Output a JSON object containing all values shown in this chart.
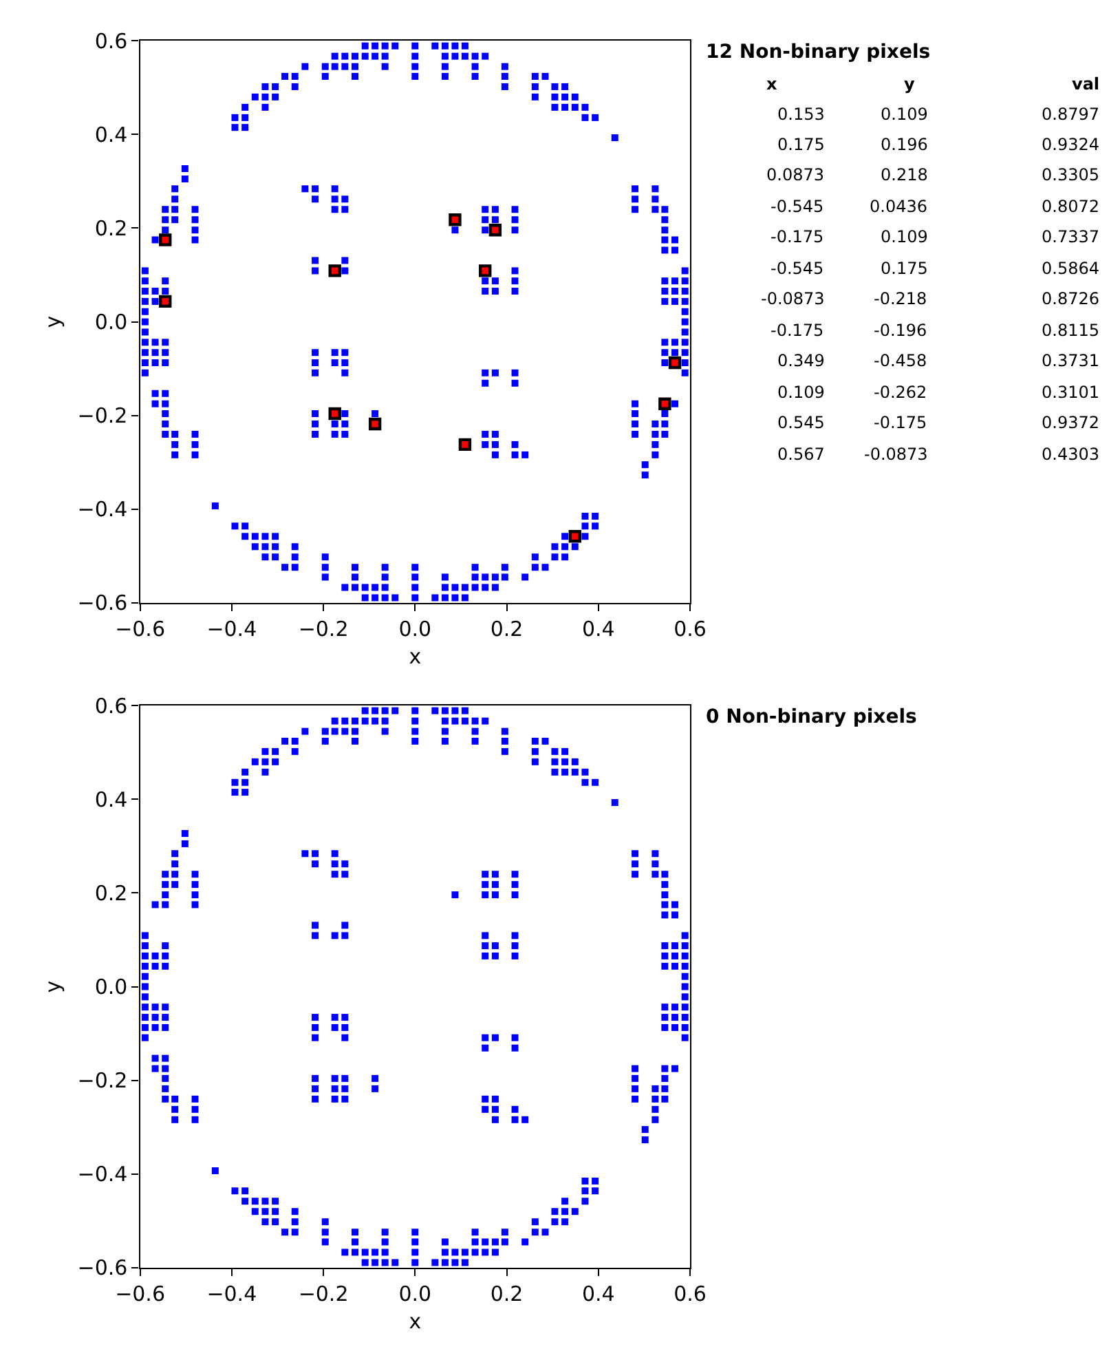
{
  "chart_data": [
    {
      "type": "scatter",
      "title": "12 Non-binary pixels",
      "xlabel": "x",
      "ylabel": "y",
      "marker": "square",
      "annotations": [
        "x",
        "y",
        "val",
        "0.153",
        "0.109",
        "0.8797",
        "0.175",
        "0.196",
        "0.9324",
        "0.0873",
        "0.218",
        "0.3305",
        "-0.545",
        "0.0436",
        "0.8072",
        "-0.175",
        "0.109",
        "0.7337",
        "-0.545",
        "0.175",
        "0.5864",
        "-0.0873",
        "-0.218",
        "0.8726",
        "-0.175",
        "-0.196",
        "0.8115",
        "0.349",
        "-0.458",
        "0.3731",
        "0.109",
        "-0.262",
        "0.3101",
        "0.545",
        "-0.175",
        "0.9372",
        "0.567",
        "-0.0873",
        "0.4303"
      ],
      "xlim": [
        -0.6,
        0.6
      ],
      "ylim": [
        -0.6,
        0.6
      ],
      "xticks": [
        {
          "value": -0.6,
          "label": "−0.6"
        },
        {
          "value": -0.4,
          "label": "−0.4"
        },
        {
          "value": -0.2,
          "label": "−0.2"
        },
        {
          "value": 0,
          "label": "0.0"
        },
        0.2,
        0.4,
        0.6
      ],
      "yticks": [
        {
          "value": -0.6,
          "label": "−0.6"
        },
        {
          "value": -0.4,
          "label": "−0.4"
        },
        {
          "value": -0.2,
          "label": "−0.2"
        },
        {
          "value": 0,
          "label": "0.0"
        },
        0.2,
        0.4,
        0.6
      ],
      "series": [
        {
          "color": "#0000ff",
          "x": [
            -0.109,
            -0.0873,
            -0.0655,
            -0.0436,
            0,
            0.0436,
            0.0655,
            0.0873,
            0.109,
            -0.175,
            -0.153,
            -0.131,
            -0.109,
            -0.0873,
            -0.0655,
            0,
            0.0655,
            0.0873,
            0.109,
            0.131,
            0.153,
            -0.24,
            -0.196,
            -0.175,
            -0.153,
            -0.131,
            -0.0655,
            0,
            0.0655,
            0.131,
            0.196,
            -0.284,
            -0.262,
            -0.196,
            -0.131,
            0,
            0.0655,
            0.131,
            0.196,
            0.262,
            0.284,
            -0.327,
            -0.305,
            -0.262,
            0.196,
            0.262,
            0.305,
            0.327,
            -0.349,
            -0.327,
            -0.305,
            0.262,
            0.305,
            0.327,
            0.349,
            -0.371,
            -0.327,
            0.305,
            0.327,
            0.349,
            0.371,
            -0.393,
            -0.371,
            0.371,
            0.393,
            -0.393,
            -0.371,
            0.436,
            -0.502,
            -0.502,
            -0.524,
            -0.24,
            -0.218,
            -0.175,
            0.48,
            0.524,
            -0.524,
            -0.218,
            -0.175,
            -0.153,
            0.48,
            0.524,
            -0.545,
            -0.524,
            -0.48,
            -0.175,
            -0.153,
            0.153,
            0.175,
            0.218,
            0.48,
            0.524,
            0.545,
            -0.545,
            -0.524,
            -0.48,
            0.153,
            0.175,
            0.218,
            0.545,
            -0.545,
            -0.48,
            0.0873,
            0.153,
            0.218,
            0.545,
            -0.567,
            -0.48,
            0.545,
            0.567,
            0.545,
            0.567,
            -0.218,
            -0.153,
            -0.589,
            -0.218,
            -0.153,
            0.218,
            0.589,
            -0.589,
            -0.545,
            0.153,
            0.175,
            0.218,
            0.545,
            0.567,
            0.589,
            -0.589,
            -0.567,
            -0.545,
            0.153,
            0.175,
            0.218,
            0.545,
            0.567,
            0.589,
            -0.589,
            -0.567,
            0.545,
            0.567,
            0.589,
            -0.589,
            0.589,
            -0.589,
            0.589,
            -0.589,
            0.589,
            -0.589,
            -0.567,
            -0.545,
            0.545,
            0.567,
            0.589,
            -0.589,
            -0.567,
            -0.545,
            -0.218,
            -0.175,
            -0.153,
            0.545,
            0.567,
            0.589,
            -0.589,
            -0.567,
            -0.545,
            -0.218,
            -0.175,
            -0.153,
            0.545,
            0.589,
            -0.589,
            -0.218,
            -0.153,
            0.153,
            0.175,
            0.218,
            0.589,
            0.153,
            0.218,
            -0.567,
            -0.545,
            -0.567,
            -0.545,
            0.48,
            0.567,
            -0.545,
            -0.218,
            -0.153,
            -0.0873,
            0.48,
            0.545,
            -0.545,
            -0.218,
            -0.175,
            -0.153,
            0.48,
            0.524,
            0.545,
            -0.545,
            -0.524,
            -0.48,
            -0.218,
            -0.175,
            -0.153,
            0.153,
            0.175,
            0.48,
            0.524,
            0.545,
            -0.524,
            -0.48,
            0.153,
            0.175,
            0.218,
            0.524,
            -0.524,
            -0.48,
            0.175,
            0.218,
            0.24,
            0.524,
            0.502,
            0.502,
            -0.436,
            0.371,
            0.393,
            -0.393,
            -0.371,
            0.371,
            0.393,
            -0.371,
            -0.349,
            -0.327,
            -0.305,
            0.327,
            0.371,
            -0.349,
            -0.327,
            -0.305,
            -0.262,
            0.305,
            0.327,
            0.349,
            -0.327,
            -0.305,
            -0.262,
            -0.196,
            0.262,
            0.305,
            0.327,
            -0.284,
            -0.262,
            -0.196,
            -0.131,
            -0.0655,
            0,
            0.131,
            0.196,
            0.262,
            0.284,
            -0.196,
            -0.131,
            -0.0655,
            0,
            0.0655,
            0.131,
            0.153,
            0.175,
            0.196,
            0.24,
            -0.153,
            -0.131,
            -0.109,
            -0.0873,
            -0.0655,
            0,
            0.0655,
            0.0873,
            0.109,
            0.131,
            0.153,
            0.175,
            -0.109,
            -0.0873,
            -0.0655,
            -0.0436,
            0,
            0.0436,
            0.0655,
            0.0873,
            0.109
          ],
          "values": [
            0.589,
            0.589,
            0.589,
            0.589,
            0.589,
            0.589,
            0.589,
            0.589,
            0.589,
            0.567,
            0.567,
            0.567,
            0.567,
            0.567,
            0.567,
            0.567,
            0.567,
            0.567,
            0.567,
            0.567,
            0.567,
            0.545,
            0.545,
            0.545,
            0.545,
            0.545,
            0.545,
            0.545,
            0.545,
            0.545,
            0.545,
            0.524,
            0.524,
            0.524,
            0.524,
            0.524,
            0.524,
            0.524,
            0.524,
            0.524,
            0.524,
            0.502,
            0.502,
            0.502,
            0.502,
            0.502,
            0.502,
            0.502,
            0.48,
            0.48,
            0.48,
            0.48,
            0.48,
            0.48,
            0.48,
            0.458,
            0.458,
            0.458,
            0.458,
            0.458,
            0.458,
            0.436,
            0.436,
            0.436,
            0.436,
            0.415,
            0.415,
            0.393,
            0.327,
            0.305,
            0.284,
            0.284,
            0.284,
            0.284,
            0.284,
            0.284,
            0.262,
            0.262,
            0.262,
            0.262,
            0.262,
            0.262,
            0.24,
            0.24,
            0.24,
            0.24,
            0.24,
            0.24,
            0.24,
            0.24,
            0.24,
            0.24,
            0.24,
            0.218,
            0.218,
            0.218,
            0.218,
            0.218,
            0.218,
            0.218,
            0.196,
            0.196,
            0.196,
            0.196,
            0.196,
            0.196,
            0.175,
            0.175,
            0.175,
            0.175,
            0.153,
            0.153,
            0.131,
            0.131,
            0.109,
            0.109,
            0.109,
            0.109,
            0.109,
            0.0873,
            0.0873,
            0.0873,
            0.0873,
            0.0873,
            0.0873,
            0.0873,
            0.0873,
            0.0655,
            0.0655,
            0.0655,
            0.0655,
            0.0655,
            0.0655,
            0.0655,
            0.0655,
            0.0655,
            0.0436,
            0.0436,
            0.0436,
            0.0436,
            0.0436,
            0.0218,
            0.0218,
            0,
            0,
            -0.0218,
            -0.0218,
            -0.0436,
            -0.0436,
            -0.0436,
            -0.0436,
            -0.0436,
            -0.0436,
            -0.0655,
            -0.0655,
            -0.0655,
            -0.0655,
            -0.0655,
            -0.0655,
            -0.0655,
            -0.0655,
            -0.0655,
            -0.0873,
            -0.0873,
            -0.0873,
            -0.0873,
            -0.0873,
            -0.0873,
            -0.0873,
            -0.0873,
            -0.109,
            -0.109,
            -0.109,
            -0.109,
            -0.109,
            -0.109,
            -0.109,
            -0.131,
            -0.131,
            -0.153,
            -0.153,
            -0.175,
            -0.175,
            -0.175,
            -0.175,
            -0.196,
            -0.196,
            -0.196,
            -0.196,
            -0.196,
            -0.196,
            -0.218,
            -0.218,
            -0.218,
            -0.218,
            -0.218,
            -0.218,
            -0.218,
            -0.24,
            -0.24,
            -0.24,
            -0.24,
            -0.24,
            -0.24,
            -0.24,
            -0.24,
            -0.24,
            -0.24,
            -0.24,
            -0.262,
            -0.262,
            -0.262,
            -0.262,
            -0.262,
            -0.262,
            -0.284,
            -0.284,
            -0.284,
            -0.284,
            -0.284,
            -0.284,
            -0.305,
            -0.327,
            -0.393,
            -0.415,
            -0.415,
            -0.436,
            -0.436,
            -0.436,
            -0.436,
            -0.458,
            -0.458,
            -0.458,
            -0.458,
            -0.458,
            -0.458,
            -0.48,
            -0.48,
            -0.48,
            -0.48,
            -0.48,
            -0.48,
            -0.48,
            -0.502,
            -0.502,
            -0.502,
            -0.502,
            -0.502,
            -0.502,
            -0.502,
            -0.524,
            -0.524,
            -0.524,
            -0.524,
            -0.524,
            -0.524,
            -0.524,
            -0.524,
            -0.524,
            -0.524,
            -0.545,
            -0.545,
            -0.545,
            -0.545,
            -0.545,
            -0.545,
            -0.545,
            -0.545,
            -0.545,
            -0.545,
            -0.567,
            -0.567,
            -0.567,
            -0.567,
            -0.567,
            -0.567,
            -0.567,
            -0.567,
            -0.567,
            -0.567,
            -0.567,
            -0.567,
            -0.589,
            -0.589,
            -0.589,
            -0.589,
            -0.589,
            -0.589,
            -0.589,
            -0.589,
            -0.589
          ]
        },
        {
          "color": "#ff0000",
          "x": [
            0.153,
            0.175,
            0.0873,
            -0.545,
            -0.175,
            -0.545,
            -0.0873,
            -0.175,
            0.349,
            0.109,
            0.545,
            0.567
          ],
          "values": [
            0.109,
            0.196,
            0.218,
            0.0436,
            0.109,
            0.175,
            -0.218,
            -0.196,
            -0.458,
            -0.262,
            -0.175,
            -0.0873
          ]
        }
      ]
    },
    {
      "type": "scatter",
      "title": "0 Non-binary pixels",
      "xlabel": "x",
      "ylabel": "y",
      "marker": "square",
      "xlim": [
        -0.6,
        0.6
      ],
      "ylim": [
        -0.6,
        0.6
      ],
      "xticks": [
        {
          "value": -0.6,
          "label": "−0.6"
        },
        {
          "value": -0.4,
          "label": "−0.4"
        },
        {
          "value": -0.2,
          "label": "−0.2"
        },
        {
          "value": 0,
          "label": "0.0"
        },
        0.2,
        0.4,
        0.6
      ],
      "yticks": [
        {
          "value": -0.6,
          "label": "−0.6"
        },
        {
          "value": -0.4,
          "label": "−0.4"
        },
        {
          "value": -0.2,
          "label": "−0.2"
        },
        {
          "value": 0,
          "label": "0.0"
        },
        0.2,
        0.4,
        0.6
      ],
      "series": [
        {
          "color": "#0000ff",
          "x": [
            -0.109,
            -0.0873,
            -0.0655,
            -0.0436,
            0,
            0.0436,
            0.0655,
            0.0873,
            0.109,
            -0.175,
            -0.153,
            -0.131,
            -0.109,
            -0.0873,
            -0.0655,
            0,
            0.0655,
            0.0873,
            0.109,
            0.131,
            0.153,
            -0.24,
            -0.196,
            -0.175,
            -0.153,
            -0.131,
            -0.0655,
            0,
            0.0655,
            0.131,
            0.196,
            -0.284,
            -0.262,
            -0.196,
            -0.131,
            0,
            0.0655,
            0.131,
            0.196,
            0.262,
            0.284,
            -0.327,
            -0.305,
            -0.262,
            0.196,
            0.262,
            0.305,
            0.327,
            -0.349,
            -0.327,
            -0.305,
            0.262,
            0.305,
            0.327,
            0.349,
            -0.371,
            -0.327,
            0.305,
            0.327,
            0.349,
            0.371,
            -0.393,
            -0.371,
            0.371,
            0.393,
            -0.393,
            -0.371,
            0.436,
            -0.502,
            -0.502,
            -0.524,
            -0.24,
            -0.218,
            -0.175,
            0.48,
            0.524,
            -0.524,
            -0.218,
            -0.175,
            -0.153,
            0.48,
            0.524,
            -0.545,
            -0.524,
            -0.48,
            -0.175,
            -0.153,
            0.153,
            0.175,
            0.218,
            0.48,
            0.524,
            0.545,
            -0.545,
            -0.524,
            -0.48,
            0.153,
            0.175,
            0.218,
            0.545,
            -0.545,
            -0.48,
            0.0873,
            0.153,
            0.175,
            0.218,
            0.545,
            -0.567,
            -0.545,
            -0.48,
            0.545,
            0.567,
            0.545,
            0.567,
            -0.218,
            -0.153,
            -0.589,
            -0.218,
            -0.175,
            -0.153,
            0.153,
            0.218,
            0.589,
            -0.589,
            -0.545,
            0.153,
            0.175,
            0.218,
            0.545,
            0.567,
            0.589,
            -0.589,
            -0.567,
            -0.545,
            0.153,
            0.175,
            0.218,
            0.545,
            0.567,
            0.589,
            -0.589,
            -0.567,
            -0.545,
            0.545,
            0.567,
            0.589,
            -0.589,
            0.589,
            -0.589,
            0.589,
            -0.589,
            0.589,
            -0.589,
            -0.567,
            -0.545,
            0.545,
            0.567,
            0.589,
            -0.589,
            -0.567,
            -0.545,
            -0.218,
            -0.175,
            -0.153,
            0.545,
            0.567,
            0.589,
            -0.589,
            -0.567,
            -0.545,
            -0.218,
            -0.175,
            -0.153,
            0.545,
            0.567,
            0.589,
            -0.589,
            -0.218,
            -0.153,
            0.153,
            0.175,
            0.218,
            0.589,
            0.153,
            0.218,
            -0.567,
            -0.545,
            -0.567,
            -0.545,
            0.48,
            0.545,
            0.567,
            -0.545,
            -0.218,
            -0.175,
            -0.153,
            -0.0873,
            0.48,
            0.545,
            -0.545,
            -0.218,
            -0.175,
            -0.153,
            -0.0873,
            0.48,
            0.524,
            0.545,
            -0.545,
            -0.524,
            -0.48,
            -0.218,
            -0.175,
            -0.153,
            0.153,
            0.175,
            0.48,
            0.524,
            0.545,
            -0.524,
            -0.48,
            0.153,
            0.175,
            0.218,
            0.524,
            -0.524,
            -0.48,
            0.175,
            0.218,
            0.24,
            0.524,
            0.502,
            0.502,
            -0.436,
            0.371,
            0.393,
            -0.393,
            -0.371,
            0.371,
            0.393,
            -0.371,
            -0.349,
            -0.327,
            -0.305,
            0.327,
            0.371,
            -0.349,
            -0.327,
            -0.305,
            -0.262,
            0.305,
            0.327,
            0.349,
            -0.327,
            -0.305,
            -0.262,
            -0.196,
            0.262,
            0.305,
            0.327,
            -0.284,
            -0.262,
            -0.196,
            -0.131,
            -0.0655,
            0,
            0.131,
            0.196,
            0.262,
            0.284,
            -0.196,
            -0.131,
            -0.0655,
            0,
            0.0655,
            0.131,
            0.153,
            0.175,
            0.196,
            0.24,
            -0.153,
            -0.131,
            -0.109,
            -0.0873,
            -0.0655,
            0,
            0.0655,
            0.0873,
            0.109,
            0.131,
            0.153,
            0.175,
            -0.109,
            -0.0873,
            -0.0655,
            -0.0436,
            0,
            0.0436,
            0.0655,
            0.0873,
            0.109
          ],
          "values": [
            0.589,
            0.589,
            0.589,
            0.589,
            0.589,
            0.589,
            0.589,
            0.589,
            0.589,
            0.567,
            0.567,
            0.567,
            0.567,
            0.567,
            0.567,
            0.567,
            0.567,
            0.567,
            0.567,
            0.567,
            0.567,
            0.545,
            0.545,
            0.545,
            0.545,
            0.545,
            0.545,
            0.545,
            0.545,
            0.545,
            0.545,
            0.524,
            0.524,
            0.524,
            0.524,
            0.524,
            0.524,
            0.524,
            0.524,
            0.524,
            0.524,
            0.502,
            0.502,
            0.502,
            0.502,
            0.502,
            0.502,
            0.502,
            0.48,
            0.48,
            0.48,
            0.48,
            0.48,
            0.48,
            0.48,
            0.458,
            0.458,
            0.458,
            0.458,
            0.458,
            0.458,
            0.436,
            0.436,
            0.436,
            0.436,
            0.415,
            0.415,
            0.393,
            0.327,
            0.305,
            0.284,
            0.284,
            0.284,
            0.284,
            0.284,
            0.284,
            0.262,
            0.262,
            0.262,
            0.262,
            0.262,
            0.262,
            0.24,
            0.24,
            0.24,
            0.24,
            0.24,
            0.24,
            0.24,
            0.24,
            0.24,
            0.24,
            0.24,
            0.218,
            0.218,
            0.218,
            0.218,
            0.218,
            0.218,
            0.218,
            0.196,
            0.196,
            0.196,
            0.196,
            0.196,
            0.196,
            0.196,
            0.175,
            0.175,
            0.175,
            0.175,
            0.175,
            0.153,
            0.153,
            0.131,
            0.131,
            0.109,
            0.109,
            0.109,
            0.109,
            0.109,
            0.109,
            0.109,
            0.0873,
            0.0873,
            0.0873,
            0.0873,
            0.0873,
            0.0873,
            0.0873,
            0.0873,
            0.0655,
            0.0655,
            0.0655,
            0.0655,
            0.0655,
            0.0655,
            0.0655,
            0.0655,
            0.0655,
            0.0436,
            0.0436,
            0.0436,
            0.0436,
            0.0436,
            0.0436,
            0.0218,
            0.0218,
            0,
            0,
            -0.0218,
            -0.0218,
            -0.0436,
            -0.0436,
            -0.0436,
            -0.0436,
            -0.0436,
            -0.0436,
            -0.0655,
            -0.0655,
            -0.0655,
            -0.0655,
            -0.0655,
            -0.0655,
            -0.0655,
            -0.0655,
            -0.0655,
            -0.0873,
            -0.0873,
            -0.0873,
            -0.0873,
            -0.0873,
            -0.0873,
            -0.0873,
            -0.0873,
            -0.0873,
            -0.109,
            -0.109,
            -0.109,
            -0.109,
            -0.109,
            -0.109,
            -0.109,
            -0.131,
            -0.131,
            -0.153,
            -0.153,
            -0.175,
            -0.175,
            -0.175,
            -0.175,
            -0.175,
            -0.196,
            -0.196,
            -0.196,
            -0.196,
            -0.196,
            -0.196,
            -0.196,
            -0.218,
            -0.218,
            -0.218,
            -0.218,
            -0.218,
            -0.218,
            -0.218,
            -0.218,
            -0.24,
            -0.24,
            -0.24,
            -0.24,
            -0.24,
            -0.24,
            -0.24,
            -0.24,
            -0.24,
            -0.24,
            -0.24,
            -0.262,
            -0.262,
            -0.262,
            -0.262,
            -0.262,
            -0.262,
            -0.284,
            -0.284,
            -0.284,
            -0.284,
            -0.284,
            -0.284,
            -0.305,
            -0.327,
            -0.393,
            -0.415,
            -0.415,
            -0.436,
            -0.436,
            -0.436,
            -0.436,
            -0.458,
            -0.458,
            -0.458,
            -0.458,
            -0.458,
            -0.458,
            -0.48,
            -0.48,
            -0.48,
            -0.48,
            -0.48,
            -0.48,
            -0.48,
            -0.502,
            -0.502,
            -0.502,
            -0.502,
            -0.502,
            -0.502,
            -0.502,
            -0.524,
            -0.524,
            -0.524,
            -0.524,
            -0.524,
            -0.524,
            -0.524,
            -0.524,
            -0.524,
            -0.524,
            -0.545,
            -0.545,
            -0.545,
            -0.545,
            -0.545,
            -0.545,
            -0.545,
            -0.545,
            -0.545,
            -0.545,
            -0.567,
            -0.567,
            -0.567,
            -0.567,
            -0.567,
            -0.567,
            -0.567,
            -0.567,
            -0.567,
            -0.567,
            -0.567,
            -0.567,
            -0.589,
            -0.589,
            -0.589,
            -0.589,
            -0.589,
            -0.589,
            -0.589,
            -0.589,
            -0.589
          ]
        }
      ]
    }
  ]
}
